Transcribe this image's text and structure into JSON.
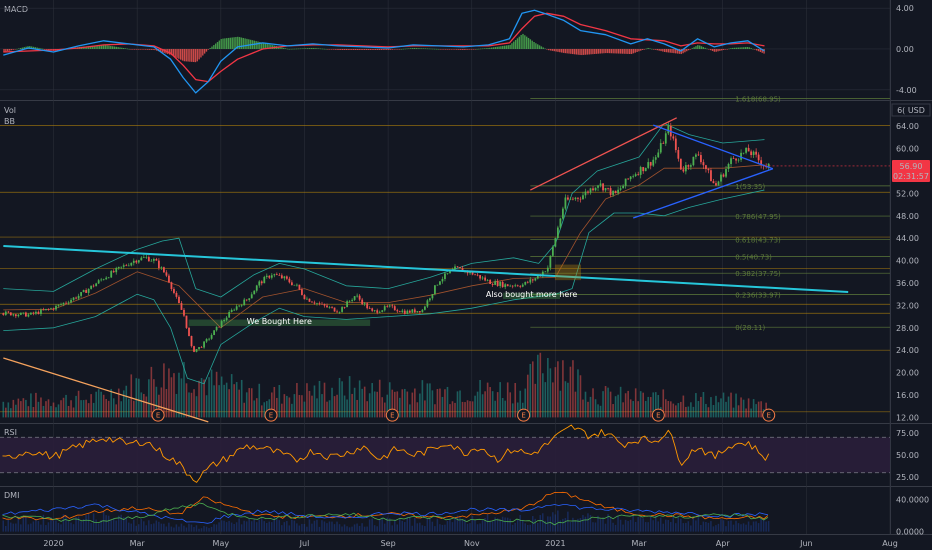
{
  "chart_data": {
    "type": "candlestick",
    "panes": {
      "macd": {
        "title": "MACD",
        "ticks": [
          {
            "value": 4,
            "label": "4.00"
          },
          {
            "value": 0,
            "label": "0.00"
          },
          {
            "value": -4,
            "label": "-4.00"
          }
        ],
        "ylim": [
          -5.0,
          4.8
        ]
      },
      "price": {
        "titles": [
          "Vol",
          "BB"
        ],
        "currency": "USD",
        "currency_badge": "6( USD",
        "ticks": [
          {
            "value": 64,
            "label": "64.00"
          },
          {
            "value": 60,
            "label": "60.00"
          },
          {
            "value": 56,
            "label": "56.00"
          },
          {
            "value": 52,
            "label": "52.00"
          },
          {
            "value": 48,
            "label": "48.00"
          },
          {
            "value": 44,
            "label": "44.00"
          },
          {
            "value": 40,
            "label": "40.00"
          },
          {
            "value": 36,
            "label": "36.00"
          },
          {
            "value": 32,
            "label": "32.00"
          },
          {
            "value": 28,
            "label": "28.00"
          },
          {
            "value": 24,
            "label": "24.00"
          },
          {
            "value": 20,
            "label": "20.00"
          },
          {
            "value": 16,
            "label": "16.00"
          },
          {
            "value": 12,
            "label": "12.00"
          }
        ],
        "ylim": [
          11.0,
          68.5
        ],
        "last_price": {
          "value": 56.9,
          "label": "56.90",
          "countdown": "02:31:57"
        },
        "fib_levels": [
          {
            "value": 68.95,
            "label": "1.618(68.95)"
          },
          {
            "value": 53.35,
            "label": "1(53.35)"
          },
          {
            "value": 47.95,
            "label": "0.786(47.95)"
          },
          {
            "value": 43.73,
            "label": "0.618(43.73)"
          },
          {
            "value": 40.73,
            "label": "0.5(40.73)"
          },
          {
            "value": 37.75,
            "label": "0.382(37.75)"
          },
          {
            "value": 33.97,
            "label": "0.236(33.97)"
          },
          {
            "value": 28.11,
            "label": "0(28.11)"
          }
        ],
        "horizontal_levels": [
          64.1,
          52.2,
          44.2,
          38.6,
          32.2,
          30.6,
          24.0,
          13.0
        ],
        "annotations": [
          {
            "text": "We Bought Here",
            "x0": 1.62,
            "x1": 3.78,
            "y0": 28.4,
            "y1": 29.4
          },
          {
            "text": "Also bought more here",
            "x0": 5.38,
            "x1": 6.05,
            "y0": 33.2,
            "y1": 34.2
          }
        ],
        "highlight_box": {
          "x0": 6.0,
          "x1": 6.3,
          "y0": 36.6,
          "y1": 39.2
        },
        "earnings_markers": {
          "symbol": "E",
          "x": [
            1.25,
            2.6,
            4.05,
            5.62,
            7.23,
            8.55
          ]
        },
        "trendlines": [
          {
            "name": "long-term",
            "color": "#26c6da",
            "points": [
              [
                -0.6,
                42.6
              ],
              [
                9.5,
                34.4
              ]
            ]
          },
          {
            "name": "lower-left",
            "color": "#f5a25d",
            "points": [
              [
                -0.6,
                22.6
              ],
              [
                1.85,
                11.2
              ]
            ]
          },
          {
            "name": "channel-top",
            "color": "#ef5350",
            "points": [
              [
                5.7,
                52.6
              ],
              [
                7.45,
                65.5
              ]
            ]
          },
          {
            "name": "triangle-top",
            "color": "#2962ff",
            "points": [
              [
                7.17,
                64.2
              ],
              [
                8.6,
                56.4
              ]
            ]
          },
          {
            "name": "triangle-bottom",
            "color": "#2962ff",
            "points": [
              [
                6.93,
                47.6
              ],
              [
                8.6,
                56.4
              ]
            ]
          }
        ],
        "series": [
          {
            "name": "close",
            "x": [
              -0.6,
              -0.3,
              0,
              0.3,
              0.6,
              0.9,
              1.0,
              1.1,
              1.2,
              1.35,
              1.45,
              1.55,
              1.65,
              1.75,
              1.85,
              2.0,
              2.15,
              2.3,
              2.45,
              2.6,
              2.75,
              2.9,
              3.0,
              3.2,
              3.4,
              3.6,
              3.8,
              4.0,
              4.2,
              4.4,
              4.6,
              4.8,
              5.0,
              5.2,
              5.4,
              5.6,
              5.75,
              5.9,
              6.1,
              6.3,
              6.5,
              6.7,
              6.9,
              7.1,
              7.2,
              7.35,
              7.5,
              7.7,
              7.9,
              8.1,
              8.3,
              8.5
            ],
            "values": [
              30.6,
              30.3,
              31.6,
              33.8,
              37.0,
              39.6,
              40.3,
              40.5,
              40.0,
              37.2,
              33.5,
              30.2,
              23.8,
              24.6,
              26.2,
              29.0,
              31.5,
              33.0,
              36.0,
              37.6,
              36.8,
              35.4,
              33.3,
              32.0,
              31.0,
              33.8,
              30.8,
              31.7,
              30.8,
              31.2,
              36.5,
              38.6,
              37.7,
              36.2,
              35.6,
              35.7,
              36.8,
              38.8,
              50.6,
              51.5,
              53.8,
              51.7,
              55.2,
              57.2,
              58.6,
              63.8,
              56.1,
              59.0,
              53.2,
              58.1,
              59.6,
              56.9
            ]
          },
          {
            "name": "bb_upper",
            "x": [
              -0.6,
              0,
              0.5,
              1.0,
              1.3,
              1.5,
              1.7,
              2.0,
              2.4,
              2.7,
              3.0,
              3.5,
              4.0,
              4.5,
              5.0,
              5.5,
              5.8,
              6.0,
              6.2,
              6.5,
              7.0,
              7.3,
              7.6,
              8.0,
              8.5
            ],
            "values": [
              35.0,
              34.5,
              38.5,
              42.0,
              43.5,
              44.0,
              35.0,
              33.5,
              37.5,
              39.5,
              38.5,
              35.5,
              35.0,
              37.0,
              39.5,
              40.5,
              39.5,
              43.0,
              52.0,
              56.0,
              58.5,
              64.5,
              62.5,
              61.0,
              61.6
            ]
          },
          {
            "name": "bb_lower",
            "x": [
              -0.6,
              0,
              0.5,
              1.0,
              1.2,
              1.4,
              1.6,
              1.8,
              2.0,
              2.4,
              2.7,
              3.0,
              3.5,
              4.0,
              4.5,
              5.0,
              5.5,
              6.0,
              6.2,
              6.4,
              6.7,
              7.0,
              7.3,
              7.6,
              8.0,
              8.5
            ],
            "values": [
              27.5,
              28.0,
              30.0,
              34.0,
              33.0,
              28.0,
              19.0,
              18.0,
              25.0,
              29.0,
              31.5,
              30.0,
              29.5,
              30.0,
              30.5,
              31.5,
              33.0,
              34.0,
              35.0,
              45.0,
              48.5,
              48.5,
              48.0,
              49.5,
              51.0,
              52.6
            ]
          },
          {
            "name": "bb_basis",
            "x": [
              -0.6,
              0,
              0.5,
              1.0,
              1.5,
              2.0,
              2.5,
              3.0,
              3.5,
              4.0,
              4.5,
              5.0,
              5.5,
              6.0,
              6.3,
              6.6,
              7.0,
              7.3,
              7.6,
              8.0,
              8.5
            ],
            "values": [
              31.2,
              31.3,
              34.2,
              38.0,
              35.5,
              28.0,
              33.5,
              35.0,
              32.5,
              32.5,
              33.8,
              35.5,
              36.8,
              37.0,
              45.0,
              51.0,
              53.5,
              56.5,
              56.5,
              56.5,
              57.1
            ]
          }
        ],
        "volume": {
          "x": [
            -0.6,
            0.5,
            1.5,
            1.85,
            2.5,
            3.5,
            4.5,
            5.6,
            5.95,
            6.5,
            7.2,
            8.0,
            8.5
          ],
          "values": [
            0.25,
            0.3,
            0.75,
            0.55,
            0.35,
            0.45,
            0.4,
            0.45,
            0.95,
            0.35,
            0.3,
            0.28,
            0.2
          ]
        }
      },
      "rsi": {
        "title": "RSI",
        "ticks": [
          {
            "value": 75,
            "label": "75.00"
          },
          {
            "value": 50,
            "label": "50.00"
          },
          {
            "value": 25,
            "label": "25.00"
          }
        ],
        "ylim": [
          15,
          85
        ],
        "bands": [
          70,
          30
        ],
        "x": [
          -0.6,
          -0.3,
          0,
          0.3,
          0.6,
          0.9,
          1.1,
          1.3,
          1.5,
          1.6,
          1.7,
          1.8,
          1.9,
          2.1,
          2.3,
          2.5,
          2.7,
          2.9,
          3.1,
          3.3,
          3.5,
          3.7,
          3.9,
          4.1,
          4.3,
          4.5,
          4.7,
          4.9,
          5.1,
          5.3,
          5.5,
          5.7,
          5.9,
          6.0,
          6.2,
          6.4,
          6.6,
          6.8,
          7.0,
          7.2,
          7.35,
          7.5,
          7.7,
          7.9,
          8.1,
          8.3,
          8.5
        ],
        "values": [
          45,
          55,
          48,
          60,
          70,
          62,
          66,
          52,
          40,
          30,
          22,
          30,
          38,
          48,
          60,
          58,
          52,
          44,
          55,
          48,
          52,
          60,
          45,
          57,
          50,
          55,
          65,
          52,
          60,
          45,
          57,
          50,
          62,
          70,
          82,
          72,
          76,
          62,
          68,
          66,
          78,
          42,
          60,
          47,
          62,
          64,
          48
        ]
      },
      "dmi": {
        "title": "DMI",
        "ticks": [
          {
            "value": 40,
            "label": "40.0000"
          },
          {
            "value": 0,
            "label": "0.0000"
          }
        ],
        "ylim": [
          -3,
          56
        ],
        "series": [
          {
            "name": "adx",
            "color": "#ff6d00",
            "x": [
              -0.6,
              0,
              0.5,
              1.0,
              1.5,
              1.8,
              2.0,
              2.5,
              3.0,
              3.5,
              4.0,
              4.5,
              5.0,
              5.6,
              6.0,
              6.3,
              6.6,
              7.0,
              7.5,
              8.0,
              8.5
            ],
            "values": [
              18,
              15,
              25,
              30,
              22,
              42,
              35,
              20,
              18,
              20,
              22,
              18,
              20,
              28,
              50,
              42,
              30,
              22,
              20,
              16,
              18
            ]
          },
          {
            "name": "plus_di",
            "color": "#2962ff",
            "x": [
              -0.6,
              0,
              0.5,
              1.0,
              1.5,
              1.8,
              2.0,
              2.5,
              3.0,
              3.5,
              4.0,
              4.5,
              5.0,
              5.6,
              6.0,
              6.3,
              6.6,
              7.0,
              7.5,
              8.0,
              8.5
            ],
            "values": [
              22,
              28,
              34,
              24,
              14,
              10,
              18,
              26,
              20,
              16,
              24,
              22,
              28,
              26,
              36,
              30,
              28,
              26,
              24,
              20,
              22
            ]
          },
          {
            "name": "minus_di",
            "color": "#4caf50",
            "x": [
              -0.6,
              0,
              0.5,
              1.0,
              1.5,
              1.8,
              2.0,
              2.5,
              3.0,
              3.5,
              4.0,
              4.5,
              5.0,
              5.6,
              6.0,
              6.3,
              6.6,
              7.0,
              7.5,
              8.0,
              8.5
            ],
            "values": [
              20,
              16,
              12,
              18,
              30,
              36,
              24,
              16,
              20,
              22,
              16,
              18,
              14,
              14,
              10,
              14,
              18,
              20,
              18,
              22,
              16
            ]
          }
        ]
      }
    },
    "macd_series": {
      "x": [
        -0.6,
        -0.3,
        0,
        0.3,
        0.6,
        0.9,
        1.2,
        1.4,
        1.55,
        1.7,
        1.85,
        2.0,
        2.2,
        2.5,
        2.8,
        3.1,
        3.4,
        3.7,
        4.0,
        4.3,
        4.6,
        4.9,
        5.2,
        5.45,
        5.6,
        5.75,
        5.9,
        6.1,
        6.3,
        6.6,
        6.9,
        7.1,
        7.3,
        7.5,
        7.7,
        7.9,
        8.1,
        8.3,
        8.5
      ],
      "macd": [
        -0.6,
        0.1,
        -0.3,
        0.3,
        0.8,
        0.5,
        0.2,
        -1.0,
        -2.8,
        -4.3,
        -3.2,
        -1.2,
        0.2,
        0.6,
        0.3,
        0.5,
        0.3,
        0.2,
        0.1,
        0.4,
        0.3,
        0.2,
        0.4,
        1.0,
        3.5,
        3.8,
        3.4,
        2.8,
        1.8,
        1.4,
        0.5,
        1.0,
        0.5,
        -0.2,
        1.0,
        0.2,
        0.6,
        0.8,
        -0.2
      ],
      "signal": [
        -0.3,
        -0.2,
        -0.1,
        0.1,
        0.4,
        0.5,
        0.3,
        -0.4,
        -1.6,
        -3.0,
        -3.2,
        -2.2,
        -1.0,
        0.0,
        0.3,
        0.4,
        0.4,
        0.3,
        0.2,
        0.3,
        0.3,
        0.3,
        0.3,
        0.6,
        2.0,
        3.2,
        3.5,
        3.2,
        2.4,
        1.8,
        1.0,
        0.9,
        0.8,
        0.3,
        0.6,
        0.5,
        0.5,
        0.6,
        0.3
      ]
    },
    "x_axis": {
      "ticks": [
        {
          "x": 0,
          "label": "2020"
        },
        {
          "x": 1,
          "label": "Mar"
        },
        {
          "x": 2,
          "label": "May"
        },
        {
          "x": 3,
          "label": "Jul"
        },
        {
          "x": 4,
          "label": "Sep"
        },
        {
          "x": 5,
          "label": "Nov"
        },
        {
          "x": 6,
          "label": "2021"
        },
        {
          "x": 7,
          "label": "Mar"
        },
        {
          "x": 8,
          "label": "Apr"
        },
        {
          "x": 9,
          "label": "Jun"
        },
        {
          "x": 10,
          "label": "Aug"
        }
      ],
      "xlim": [
        -0.64,
        10.0
      ]
    },
    "colors": {
      "background": "#131722",
      "grid": "#2a2e39",
      "up": "#26a69a",
      "down": "#ef5350",
      "candle_up": "#4caf50",
      "macd_line": "#2196f3",
      "signal_line": "#f23645",
      "rsi_line": "#ff9800",
      "rsi_band": "#2a1e3a",
      "bb": "#26a69a",
      "fib": "#5d7a3a",
      "annotation": "#4caf50",
      "highlight": "#b8860b",
      "last_price_badge": "#f23645"
    }
  }
}
